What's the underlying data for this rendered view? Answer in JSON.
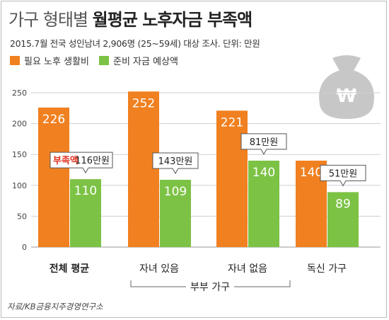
{
  "title": {
    "part1": "가구 형태별 ",
    "part2": "월평균 노후자금 부족액"
  },
  "subtitle": "2015.7월 전국 성인남녀 2,906명 (25~59세) 대상 조사. 단위: 만원",
  "legend": [
    {
      "label": "필요 노후 생활비",
      "color": "#f08020"
    },
    {
      "label": "준비 자금 예상액",
      "color": "#7cc245"
    }
  ],
  "icon": {
    "name": "money-bag-icon",
    "symbol": "₩"
  },
  "group_label": "부부 가구",
  "shortfall_word": "부족액",
  "source": "자료/KB금융지주경영연구소",
  "colors": {
    "needed": "#f08020",
    "prepared": "#7cc245",
    "shortfall_text": "#e0301e",
    "grid": "#cfcfcf"
  },
  "chart_data": {
    "type": "bar",
    "categories": [
      "전체 평균",
      "자녀 있음",
      "자녀 없음",
      "독신 가구"
    ],
    "series": [
      {
        "name": "필요 노후 생활비",
        "values": [
          226,
          252,
          221,
          140
        ]
      },
      {
        "name": "준비 자금 예상액",
        "values": [
          110,
          109,
          140,
          89
        ]
      }
    ],
    "shortfall_labels": [
      "116만원",
      "143만원",
      "81만원",
      "51만원"
    ],
    "yticks": [
      0,
      50,
      100,
      150,
      200,
      250
    ],
    "ylim": [
      0,
      260
    ],
    "grid": true
  }
}
